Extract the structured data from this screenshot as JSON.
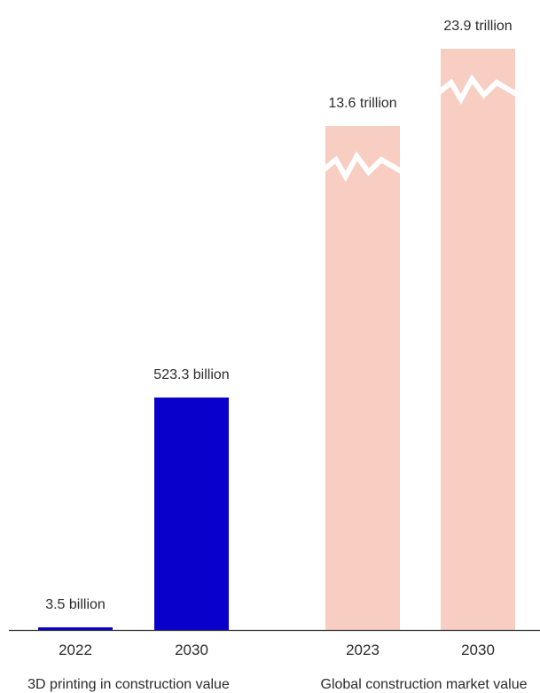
{
  "chart_data": {
    "type": "bar",
    "title": "",
    "groups": [
      {
        "name": "3D printing in construction value",
        "color": "#0a00cc",
        "axis_break": false,
        "bars": [
          {
            "category": "2022",
            "value": 3.5,
            "unit": "billion",
            "label": "3.5 billion"
          },
          {
            "category": "2030",
            "value": 523.3,
            "unit": "billion",
            "label": "523.3 billion"
          }
        ]
      },
      {
        "name": "Global construction market value",
        "color": "#f8cdc2",
        "axis_break": true,
        "bars": [
          {
            "category": "2023",
            "value": 13.6,
            "unit": "trillion",
            "label": "13.6 trillion"
          },
          {
            "category": "2030",
            "value": 23.9,
            "unit": "trillion",
            "label": "23.9 trillion"
          }
        ]
      }
    ],
    "baseline_color": "#333333"
  }
}
